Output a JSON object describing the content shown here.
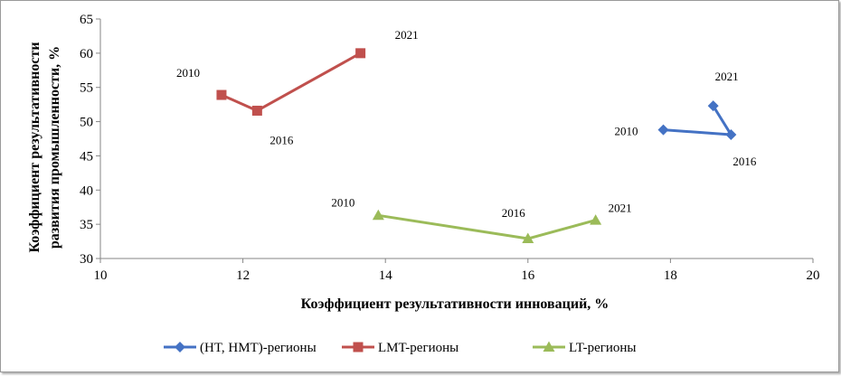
{
  "chart_data": {
    "type": "line",
    "title": "",
    "xlabel": "Коэффициент результативности инноваций, %",
    "ylabel_lines": [
      "Коэффициент результативности",
      "развития промышленности, %"
    ],
    "xlim": [
      10,
      20
    ],
    "ylim": [
      30,
      65
    ],
    "xticks": [
      10,
      12,
      14,
      16,
      18,
      20
    ],
    "yticks": [
      30,
      35,
      40,
      45,
      50,
      55,
      60,
      65
    ],
    "grid": false,
    "legend_position": "bottom",
    "series": [
      {
        "name": "(HT, HMT)-регионы",
        "color": "#4472c4",
        "marker": "diamond",
        "points": [
          {
            "x": 17.9,
            "y": 48.8,
            "label": "2010"
          },
          {
            "x": 18.85,
            "y": 48.1,
            "label": "2016"
          },
          {
            "x": 18.6,
            "y": 52.3,
            "label": "2021"
          }
        ]
      },
      {
        "name": "LMT-регионы",
        "color": "#c0504d",
        "marker": "square",
        "points": [
          {
            "x": 11.7,
            "y": 53.9,
            "label": "2010"
          },
          {
            "x": 12.2,
            "y": 51.6,
            "label": "2016"
          },
          {
            "x": 13.65,
            "y": 60.0,
            "label": "2021"
          }
        ]
      },
      {
        "name": "LT-регионы",
        "color": "#9bbb59",
        "marker": "triangle",
        "points": [
          {
            "x": 13.9,
            "y": 36.3,
            "label": "2010"
          },
          {
            "x": 16.0,
            "y": 32.9,
            "label": "2016"
          },
          {
            "x": 16.95,
            "y": 35.6,
            "label": "2021"
          }
        ]
      }
    ]
  }
}
